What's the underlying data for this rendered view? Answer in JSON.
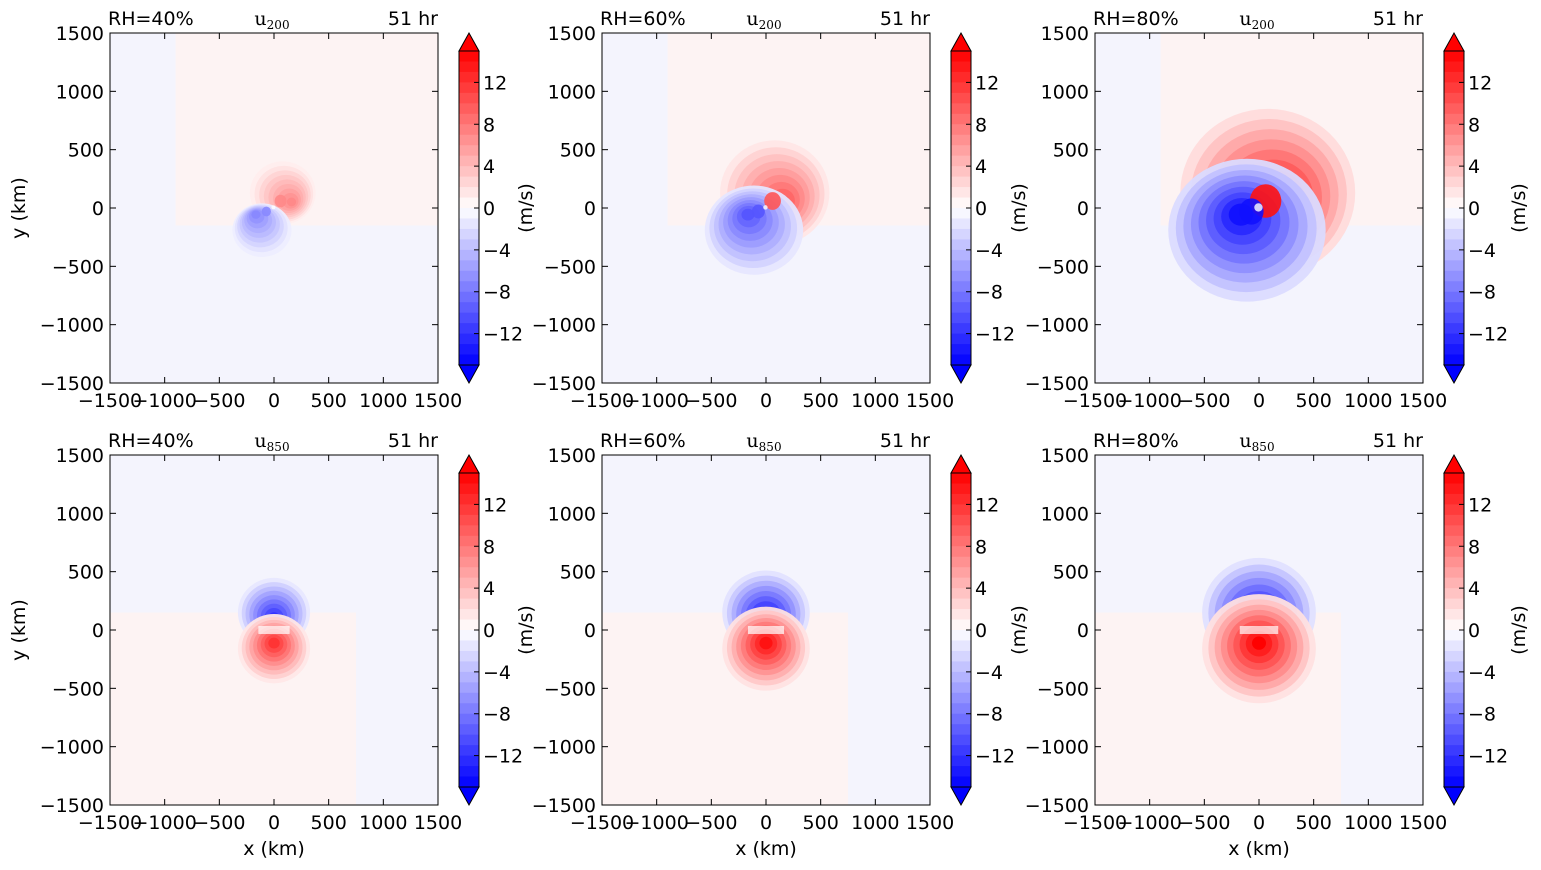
{
  "chart_data": [
    {
      "type": "heatmap",
      "panel": "top-left",
      "rh_label": "RH=40%",
      "variable": "u",
      "level": "200",
      "time_label": "51 hr",
      "ylabel": "y (km)",
      "xlabel": "",
      "cbar_label": "",
      "xlim": [
        -1500,
        1500
      ],
      "ylim": [
        -1500,
        1500
      ],
      "xticks": [
        "−1500",
        "−1000",
        "−500",
        "0",
        "500",
        "1000",
        "1500"
      ],
      "yticks": [
        "1500",
        "1000",
        "500",
        "0",
        "−500",
        "−1000",
        "−1500"
      ],
      "colorbar": {
        "ticks": [
          "12",
          "8",
          "4",
          "0",
          "−4",
          "−8",
          "−12"
        ],
        "range": [
          -15,
          15
        ],
        "extend": "both",
        "colormap": "bwr"
      },
      "pattern": {
        "kind": "upper",
        "amp": 7,
        "inner": 120,
        "outer": 300,
        "base": 0.4
      }
    },
    {
      "type": "heatmap",
      "panel": "top-middle",
      "rh_label": "RH=60%",
      "variable": "u",
      "level": "200",
      "time_label": "51 hr",
      "ylabel": "",
      "xlabel": "",
      "cbar_label": "(m/s)",
      "xlim": [
        -1500,
        1500
      ],
      "ylim": [
        -1500,
        1500
      ],
      "xticks": [
        "−1500",
        "−1000",
        "−500",
        "0",
        "500",
        "1000",
        "1500"
      ],
      "yticks": [
        "1500",
        "1000",
        "500",
        "0",
        "−500",
        "−1000",
        "−1500"
      ],
      "colorbar": {
        "ticks": [
          "12",
          "8",
          "4",
          "0",
          "−4",
          "−8",
          "−12"
        ],
        "range": [
          -15,
          15
        ],
        "extend": "both",
        "colormap": "bwr"
      },
      "pattern": {
        "kind": "upper",
        "amp": 10,
        "inner": 170,
        "outer": 500,
        "base": 0.6
      }
    },
    {
      "type": "heatmap",
      "panel": "top-right",
      "rh_label": "RH=80%",
      "variable": "u",
      "level": "200",
      "time_label": "51 hr",
      "ylabel": "",
      "xlabel": "",
      "cbar_label": "(m/s)",
      "xlim": [
        -1500,
        1500
      ],
      "ylim": [
        -1500,
        1500
      ],
      "xticks": [
        "−1500",
        "−1000",
        "−500",
        "0",
        "500",
        "1000",
        "1500"
      ],
      "yticks": [
        "1500",
        "1000",
        "500",
        "0",
        "−500",
        "−1000",
        "−1500"
      ],
      "colorbar": {
        "ticks": [
          "12",
          "8",
          "4",
          "0",
          "−4",
          "−8",
          "−12"
        ],
        "range": [
          -15,
          15
        ],
        "extend": "both",
        "colormap": "bwr"
      },
      "pattern": {
        "kind": "upper",
        "amp": 14,
        "inner": 320,
        "outer": 800,
        "base": 0.8
      }
    },
    {
      "type": "heatmap",
      "panel": "bottom-left",
      "rh_label": "RH=40%",
      "variable": "u",
      "level": "850",
      "time_label": "51 hr",
      "ylabel": "y (km)",
      "xlabel": "x (km)",
      "cbar_label": "",
      "xlim": [
        -1500,
        1500
      ],
      "ylim": [
        -1500,
        1500
      ],
      "xticks": [
        "−1500",
        "−1000",
        "−500",
        "0",
        "500",
        "1000",
        "1500"
      ],
      "yticks": [
        "1500",
        "1000",
        "500",
        "0",
        "−500",
        "−1000",
        "−1500"
      ],
      "colorbar": {
        "ticks": [
          "12",
          "8",
          "4",
          "0",
          "−4",
          "−8",
          "−12"
        ],
        "range": [
          -15,
          15
        ],
        "extend": "both",
        "colormap": "bwr"
      },
      "pattern": {
        "kind": "lower",
        "amp": 12,
        "inner": 130,
        "outer": 330,
        "base": 0.6
      }
    },
    {
      "type": "heatmap",
      "panel": "bottom-middle",
      "rh_label": "RH=60%",
      "variable": "u",
      "level": "850",
      "time_label": "51 hr",
      "ylabel": "",
      "xlabel": "x (km)",
      "cbar_label": "(m/s)",
      "xlim": [
        -1500,
        1500
      ],
      "ylim": [
        -1500,
        1500
      ],
      "xticks": [
        "−1500",
        "−1000",
        "−500",
        "0",
        "500",
        "1000",
        "1500"
      ],
      "yticks": [
        "1500",
        "1000",
        "500",
        "0",
        "−500",
        "−1000",
        "−1500"
      ],
      "colorbar": {
        "ticks": [
          "12",
          "8",
          "4",
          "0",
          "−4",
          "−8",
          "−12"
        ],
        "range": [
          -15,
          15
        ],
        "extend": "both",
        "colormap": "bwr"
      },
      "pattern": {
        "kind": "lower",
        "amp": 14,
        "inner": 150,
        "outer": 400,
        "base": 0.6
      }
    },
    {
      "type": "heatmap",
      "panel": "bottom-right",
      "rh_label": "RH=80%",
      "variable": "u",
      "level": "850",
      "time_label": "51 hr",
      "ylabel": "",
      "xlabel": "x (km)",
      "cbar_label": "(m/s)",
      "xlim": [
        -1500,
        1500
      ],
      "ylim": [
        -1500,
        1500
      ],
      "xticks": [
        "−1500",
        "−1000",
        "−500",
        "0",
        "500",
        "1000",
        "1500"
      ],
      "yticks": [
        "1500",
        "1000",
        "500",
        "0",
        "−500",
        "−1000",
        "−1500"
      ],
      "colorbar": {
        "ticks": [
          "12",
          "8",
          "4",
          "0",
          "−4",
          "−8",
          "−12"
        ],
        "range": [
          -15,
          15
        ],
        "extend": "both",
        "colormap": "bwr"
      },
      "pattern": {
        "kind": "lower",
        "amp": 15,
        "inner": 160,
        "outer": 520,
        "base": 0.6
      }
    }
  ]
}
